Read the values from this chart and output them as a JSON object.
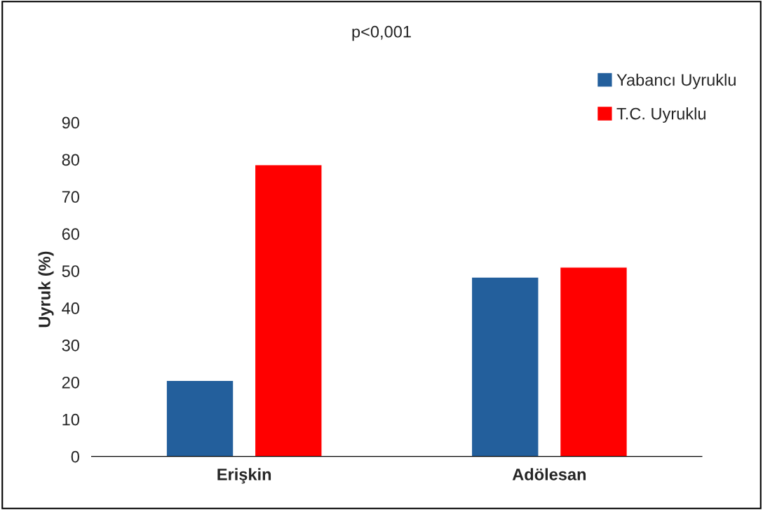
{
  "chart_data": {
    "type": "bar",
    "title": "p<0,001",
    "ylabel": "Uyruk (%)",
    "categories": [
      "Erişkin",
      "Adölesan"
    ],
    "series": [
      {
        "name": "Yabancı Uyruklu",
        "color": "#235f9c",
        "values": [
          20.5,
          48.3
        ]
      },
      {
        "name": "T.C. Uyruklu",
        "color": "#ff0000",
        "values": [
          78.6,
          51.0
        ]
      }
    ],
    "ylim": [
      0,
      90
    ],
    "yticks": [
      0,
      10,
      20,
      30,
      40,
      50,
      60,
      70,
      80,
      90
    ],
    "grid": false,
    "legend": "top right"
  }
}
